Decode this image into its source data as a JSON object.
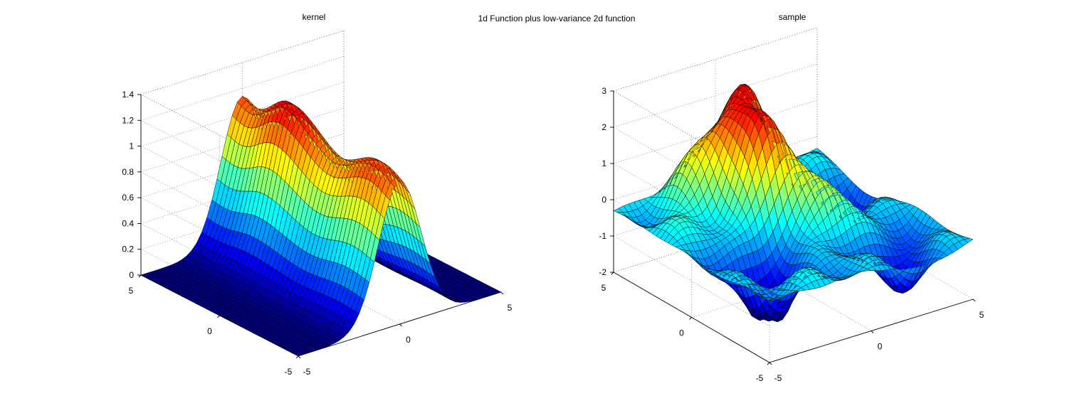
{
  "figure": {
    "suptitle": "1d Function plus low-variance 2d function"
  },
  "chart_data": [
    {
      "type": "surface",
      "title": "kernel",
      "xlabel": "",
      "ylabel": "",
      "zlabel": "",
      "xlim": [
        -5,
        5
      ],
      "ylim": [
        -5,
        5
      ],
      "zlim": [
        0,
        1.4
      ],
      "x_ticks": [
        "-5",
        "0",
        "5"
      ],
      "y_ticks": [
        "-5",
        "0",
        "5"
      ],
      "z_ticks": [
        "0",
        "0.2",
        "0.4",
        "0.6",
        "0.8",
        "1",
        "1.2",
        "1.4"
      ],
      "colormap": "jet",
      "grid": true,
      "peak_z": 1.4
    },
    {
      "type": "surface",
      "title": "sample",
      "xlabel": "",
      "ylabel": "",
      "zlabel": "",
      "xlim": [
        -5,
        5
      ],
      "ylim": [
        -5,
        5
      ],
      "zlim": [
        -2,
        3
      ],
      "x_ticks": [
        "-5",
        "0",
        "5"
      ],
      "y_ticks": [
        "-5",
        "0",
        "5"
      ],
      "z_ticks": [
        "-2",
        "-1",
        "0",
        "1",
        "2",
        "3"
      ],
      "colormap": "jet",
      "grid": true,
      "z_range_observed": [
        -2,
        3
      ]
    }
  ]
}
